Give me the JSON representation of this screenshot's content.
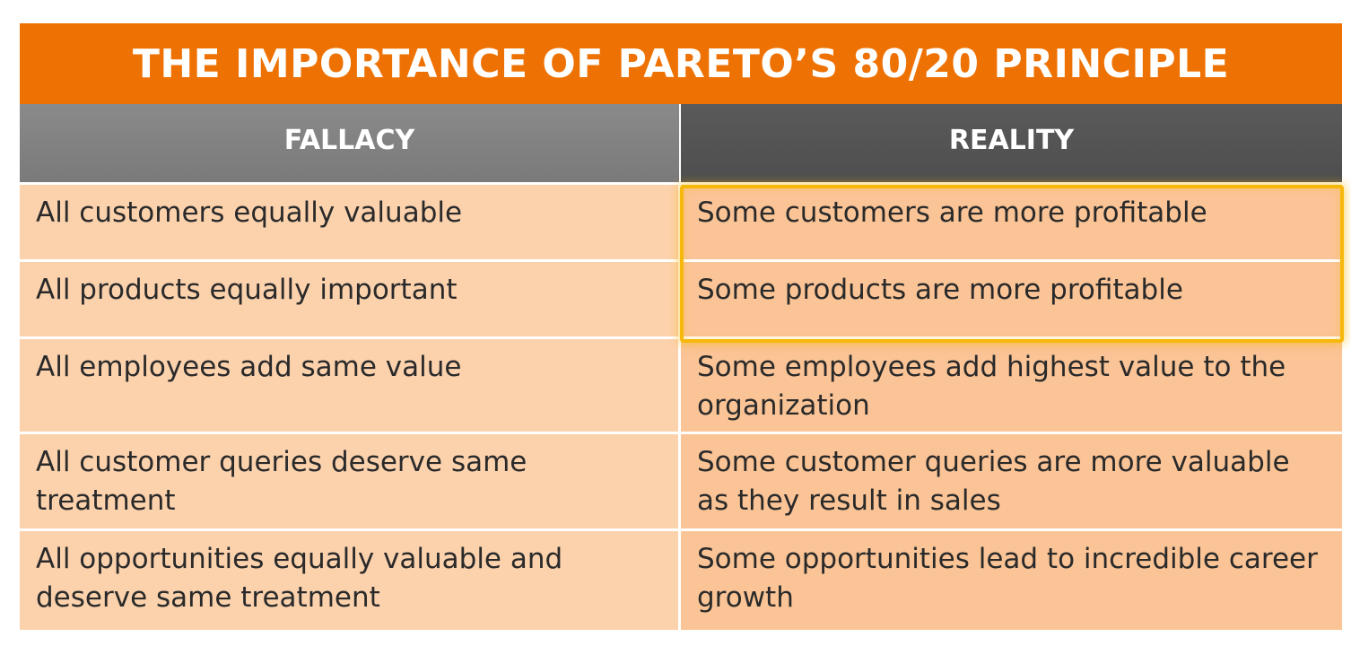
{
  "title": "THE IMPORTANCE OF PARETO’S 80/20 PRINCIPLE",
  "headers": {
    "fallacy": "FALLACY",
    "reality": "REALITY"
  },
  "rows": [
    {
      "fallacy": "All customers equally valuable",
      "reality": "Some customers are more profitable"
    },
    {
      "fallacy": "All products equally important",
      "reality": "Some products are more profitable"
    },
    {
      "fallacy": "All employees add same value",
      "reality": "Some employees add highest value to the organization"
    },
    {
      "fallacy": "All customer queries deserve same treatment",
      "reality": "Some customer queries are more valuable as they result in sales"
    },
    {
      "fallacy": "All opportunities equally valuable and deserve same treatment",
      "reality": "Some opportunities lead to incredible career growth"
    }
  ],
  "colors": {
    "title_background": "#ee7203",
    "fallacy_header_background": "#808080",
    "reality_header_background": "#545454",
    "fallacy_cell_background": "#fcd2ad",
    "reality_cell_background": "#fbc496",
    "highlight_border": "#f7b80c"
  }
}
